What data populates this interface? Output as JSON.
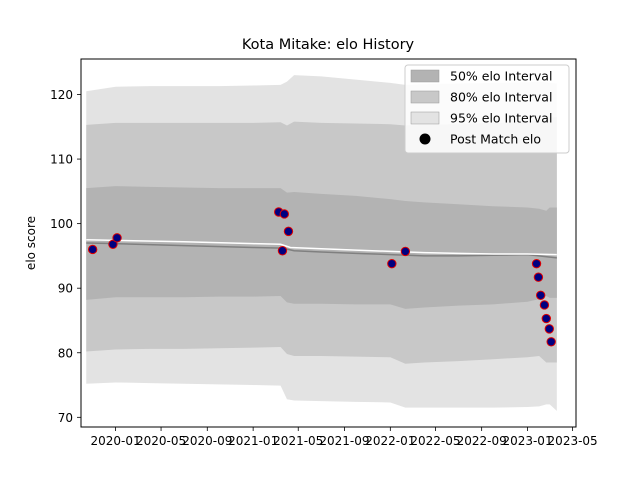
{
  "chart_data": {
    "type": "area",
    "title": "Kota Mitake: elo History",
    "xlabel": "",
    "ylabel": "elo score",
    "x_range": [
      "2019-10-01",
      "2023-05-10"
    ],
    "ylim": [
      68.5,
      125.5
    ],
    "x_ticks": [
      "2020-01",
      "2020-05",
      "2020-09",
      "2021-01",
      "2021-05",
      "2021-09",
      "2022-01",
      "2022-05",
      "2022-09",
      "2023-01",
      "2023-05"
    ],
    "y_ticks": [
      70,
      80,
      90,
      100,
      110,
      120
    ],
    "grid": false,
    "legend_position": "top-right",
    "legend": [
      {
        "label": "50% elo Interval",
        "color": "#b3b3b3",
        "kind": "band"
      },
      {
        "label": "80% elo Interval",
        "color": "#c8c8c8",
        "kind": "band"
      },
      {
        "label": "95% elo Interval",
        "color": "#e3e3e3",
        "kind": "band"
      },
      {
        "label": "Post Match elo",
        "color": "#000000",
        "kind": "marker"
      }
    ],
    "band_x": [
      "2019-10-15",
      "2020-01-01",
      "2020-04-01",
      "2020-07-01",
      "2020-10-01",
      "2021-01-01",
      "2021-03-15",
      "2021-04-01",
      "2021-04-20",
      "2021-07-01",
      "2021-10-01",
      "2022-01-01",
      "2022-02-10",
      "2022-04-01",
      "2022-07-01",
      "2022-10-01",
      "2023-01-01",
      "2023-02-01",
      "2023-02-20",
      "2023-03-01",
      "2023-03-20"
    ],
    "bands": [
      {
        "name": "95%",
        "color": "#e3e3e3",
        "lower": [
          75.2,
          75.4,
          75.3,
          75.2,
          75.1,
          75.0,
          74.9,
          72.8,
          72.6,
          72.5,
          72.4,
          72.3,
          71.5,
          71.5,
          71.5,
          71.5,
          71.6,
          71.7,
          72.0,
          72.0,
          71.0
        ],
        "upper": [
          120.5,
          121.2,
          121.3,
          121.3,
          121.3,
          121.4,
          121.5,
          122.0,
          123.0,
          122.8,
          122.3,
          121.8,
          121.5,
          121.6,
          121.7,
          121.8,
          121.9,
          122.0,
          121.9,
          121.8,
          121.7
        ]
      },
      {
        "name": "80%",
        "color": "#c8c8c8",
        "lower": [
          80.2,
          80.5,
          80.6,
          80.6,
          80.7,
          80.8,
          80.9,
          79.8,
          79.5,
          79.5,
          79.4,
          79.3,
          78.3,
          78.5,
          78.7,
          79.0,
          79.3,
          79.5,
          78.5,
          78.5,
          78.5
        ],
        "upper": [
          115.3,
          115.6,
          115.6,
          115.6,
          115.6,
          115.6,
          115.7,
          115.2,
          115.8,
          115.6,
          115.5,
          115.4,
          115.2,
          115.3,
          115.4,
          115.6,
          115.8,
          116.0,
          116.5,
          116.5,
          116.5
        ]
      },
      {
        "name": "50%",
        "color": "#b3b3b3",
        "lower": [
          88.2,
          88.6,
          88.6,
          88.6,
          88.7,
          88.7,
          88.8,
          87.8,
          87.6,
          87.6,
          87.5,
          87.5,
          86.8,
          87.0,
          87.3,
          87.5,
          87.9,
          88.3,
          88.8,
          88.5,
          88.5
        ],
        "upper": [
          105.5,
          105.8,
          105.7,
          105.6,
          105.5,
          105.5,
          105.5,
          104.8,
          104.9,
          104.6,
          104.3,
          103.8,
          103.5,
          103.3,
          103.0,
          102.7,
          102.5,
          102.3,
          102.0,
          102.5,
          102.5
        ]
      }
    ],
    "series": [
      {
        "name": "",
        "color": "#808080",
        "x": [
          "2019-10-15",
          "2020-01-01",
          "2020-07-01",
          "2021-01-01",
          "2021-03-20",
          "2021-04-20",
          "2021-07-01",
          "2021-10-01",
          "2022-01-01",
          "2022-04-01",
          "2022-07-01",
          "2022-10-01",
          "2023-01-01",
          "2023-03-20"
        ],
        "y": [
          97.0,
          96.9,
          96.6,
          96.3,
          96.2,
          95.8,
          95.6,
          95.4,
          95.2,
          95.0,
          95.0,
          95.1,
          95.2,
          94.7
        ]
      },
      {
        "name": "",
        "color": "#ffffff",
        "x": [
          "2019-10-15",
          "2020-01-01",
          "2020-07-01",
          "2021-01-01",
          "2021-03-15",
          "2021-04-10",
          "2021-07-01",
          "2021-10-01",
          "2022-01-01",
          "2022-04-01",
          "2022-07-01",
          "2022-10-01",
          "2023-01-01",
          "2023-03-20"
        ],
        "y": [
          97.5,
          97.4,
          97.2,
          96.9,
          96.8,
          96.3,
          96.1,
          95.9,
          95.7,
          95.5,
          95.4,
          95.3,
          95.3,
          95.2
        ]
      }
    ],
    "points": {
      "name": "Post Match elo",
      "fill": "#000080",
      "edge": "#e00000",
      "x": [
        "2019-11-01",
        "2019-12-25",
        "2020-01-05",
        "2021-03-10",
        "2021-03-20",
        "2021-03-25",
        "2021-04-05",
        "2022-01-05",
        "2022-02-10",
        "2023-01-25",
        "2023-01-30",
        "2023-02-05",
        "2023-02-15",
        "2023-02-20",
        "2023-02-28",
        "2023-03-05"
      ],
      "y": [
        96.0,
        96.8,
        97.8,
        101.8,
        95.8,
        101.5,
        98.8,
        93.8,
        95.7,
        93.8,
        91.7,
        88.9,
        87.4,
        85.3,
        83.7,
        81.7
      ]
    }
  }
}
